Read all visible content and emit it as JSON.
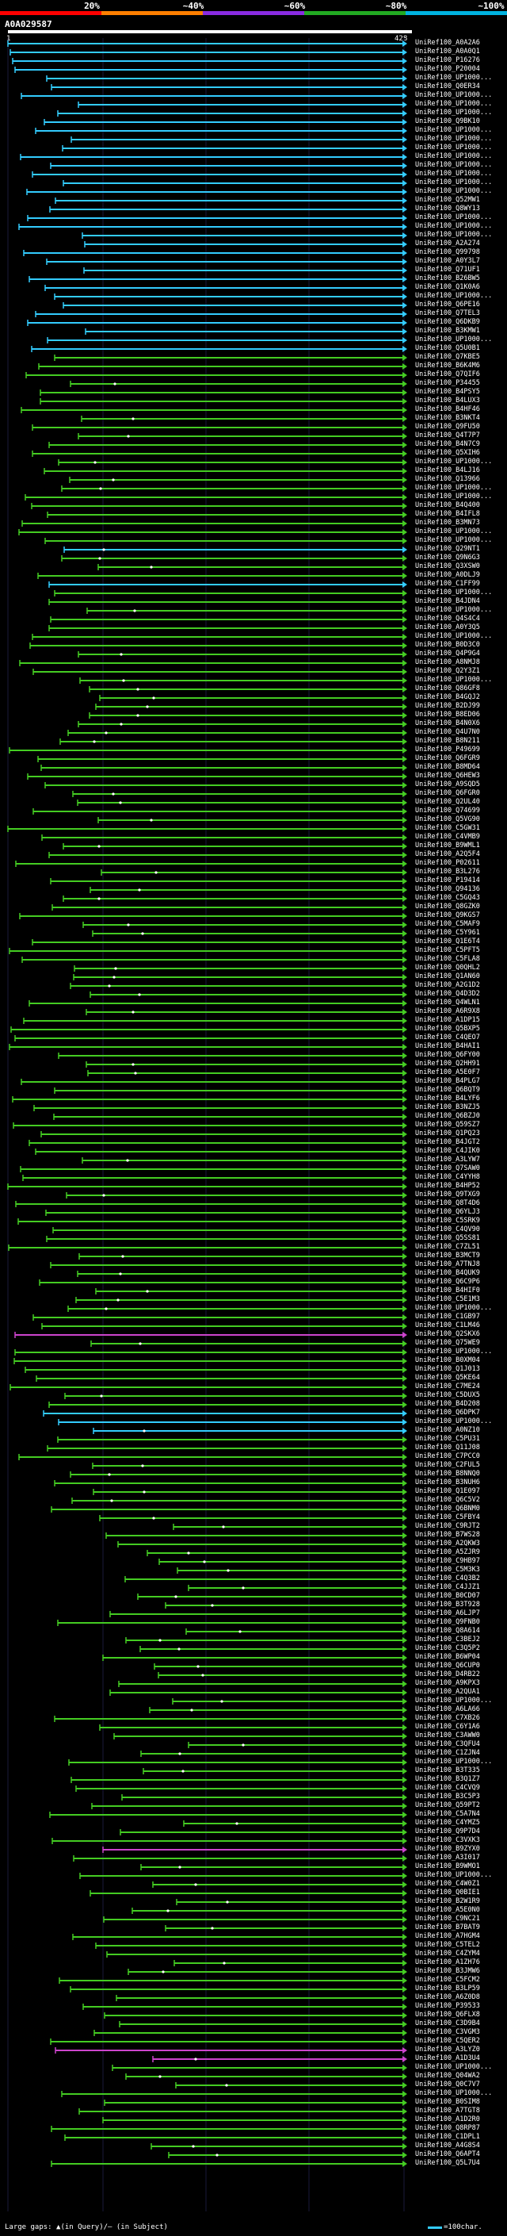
{
  "header": {
    "scale_ticks": [
      "20%",
      "~40%",
      "~60%",
      "~80%",
      "~100%"
    ],
    "colors": [
      "#ff0000",
      "#ff7f00",
      "#8a2be2",
      "#22aa22",
      "#00b3e0"
    ]
  },
  "query": {
    "id": "A0A029587",
    "start": "1",
    "end": "428"
  },
  "hit_colors": {
    "cyan": "#33ccff",
    "green": "#44cc22",
    "magenta": "#cc44cc"
  },
  "hits": [
    "UniRef100_A0A2A6",
    "UniRef100_A0A0Q1",
    "UniRef100_P16276",
    "UniRef100_P20004",
    "UniRef100_UP1000...",
    "UniRef100_Q0ER34",
    "UniRef100_UP1000...",
    "UniRef100_UP1000...",
    "UniRef100_UP1000...",
    "UniRef100_Q9BK10",
    "UniRef100_UP1000...",
    "UniRef100_UP1000...",
    "UniRef100_UP1000...",
    "UniRef100_UP1000...",
    "UniRef100_UP1000...",
    "UniRef100_UP1000...",
    "UniRef100_UP1000...",
    "UniRef100_UP1000...",
    "UniRef100_Q52MW1",
    "UniRef100_Q8WY13",
    "UniRef100_UP1000...",
    "UniRef100_UP1000...",
    "UniRef100_UP1000...",
    "UniRef100_A2A274",
    "UniRef100_Q99798",
    "UniRef100_A0Y3L7",
    "UniRef100_Q71UF1",
    "UniRef100_B26BW5",
    "UniRef100_Q1K0A6",
    "UniRef100_UP1000...",
    "UniRef100_Q6PE16",
    "UniRef100_Q7TEL3",
    "UniRef100_Q6DKB9",
    "UniRef100_B3KMW1",
    "UniRef100_UP1000...",
    "UniRef100_Q5U0B1",
    "UniRef100_Q7KBE5",
    "UniRef100_B6K4M6",
    "UniRef100_Q7QIF6",
    "UniRef100_P34455",
    "UniRef100_B4PSY5",
    "UniRef100_B4LUX3",
    "UniRef100_B4HF46",
    "UniRef100_B3NKT4",
    "UniRef100_Q9FU50",
    "UniRef100_Q4T7P7",
    "UniRef100_B4N7C9",
    "UniRef100_Q5XIH6",
    "UniRef100_UP1000...",
    "UniRef100_B4LJ16",
    "UniRef100_Q13966",
    "UniRef100_UP1000...",
    "UniRef100_UP1000...",
    "UniRef100_B4Q400",
    "UniRef100_B4IFL8",
    "UniRef100_B3MN73",
    "UniRef100_UP1000...",
    "UniRef100_UP1000...",
    "UniRef100_Q29NT1",
    "UniRef100_Q9N6G3",
    "UniRef100_Q3XSW0",
    "UniRef100_A0DLJ9",
    "UniRef100_C1FF99",
    "UniRef100_UP1000...",
    "UniRef100_B4JDN4",
    "UniRef100_UP1000...",
    "UniRef100_Q4S4C4",
    "UniRef100_A0Y3Q5",
    "UniRef100_UP1000...",
    "UniRef100_B0D3C0",
    "UniRef100_Q4P9G4",
    "UniRef100_A8NMJ8",
    "UniRef100_Q2Y3Z1",
    "UniRef100_UP1000...",
    "UniRef100_Q86GF8",
    "UniRef100_B4GQJ2",
    "UniRef100_B2DJ99",
    "UniRef100_B8ED06",
    "UniRef100_B4N0X6",
    "UniRef100_Q4U7N0",
    "UniRef100_B8N211",
    "UniRef100_P49699",
    "UniRef100_Q6FGR9",
    "UniRef100_B8MD64",
    "UniRef100_Q6HEW3",
    "UniRef100_A9SQD5",
    "UniRef100_Q6FGR0",
    "UniRef100_Q2UL40",
    "UniRef100_Q74699",
    "UniRef100_Q5VG90",
    "UniRef100_C5GW31",
    "UniRef100_C4VMB9",
    "UniRef100_B9WML1",
    "UniRef100_A2Q5F4",
    "UniRef100_P02611",
    "UniRef100_B3L276",
    "UniRef100_P19414",
    "UniRef100_Q94136",
    "UniRef100_C5GQ43",
    "UniRef100_Q8GZK0",
    "UniRef100_Q9KGS7",
    "UniRef100_C5MAF9",
    "UniRef100_C5Y961",
    "UniRef100_Q1E6T4",
    "UniRef100_C5PFT5",
    "UniRef100_C5FLA8",
    "UniRef100_Q0QHL2",
    "UniRef100_Q1AN60",
    "UniRef100_A2G1D2",
    "UniRef100_Q4D3D2",
    "UniRef100_Q4WLN1",
    "UniRef100_A6R9X8",
    "UniRef100_A1DP15",
    "UniRef100_Q5BXP5",
    "UniRef100_C4QEO7",
    "UniRef100_B4HAI1",
    "UniRef100_Q6FY00",
    "UniRef100_Q2HH91",
    "UniRef100_A5E0F7",
    "UniRef100_B4PLG7",
    "UniRef100_Q6BQT9",
    "UniRef100_B4LYF6",
    "UniRef100_B3NZJ5",
    "UniRef100_Q6BZJ0",
    "UniRef100_Q59SZ7",
    "UniRef100_Q1PQ23",
    "UniRef100_B4JGT2",
    "UniRef100_C4JIK0",
    "UniRef100_A3LYW7",
    "UniRef100_Q7SAW0",
    "UniRef100_C4YYH8",
    "UniRef100_B4HP52",
    "UniRef100_Q9TXG9",
    "UniRef100_Q8T4D6",
    "UniRef100_Q6YLJ3",
    "UniRef100_C5SRK9",
    "UniRef100_C4QV90",
    "UniRef100_Q5SS81",
    "UniRef100_C7ZL51",
    "UniRef100_B3MCT9",
    "UniRef100_A7TNJ8",
    "UniRef100_B4QUK9",
    "UniRef100_Q6C9P6",
    "UniRef100_B4HIF0",
    "UniRef100_C5E1M3",
    "UniRef100_UP1000...",
    "UniRef100_C1GB97",
    "UniRef100_C1LM46",
    "UniRef100_Q2SKX6",
    "UniRef100_Q75WE9",
    "UniRef100_UP1000...",
    "UniRef100_B0XM04",
    "UniRef100_Q1J013",
    "UniRef100_Q5KE64",
    "UniRef100_C7ME24",
    "UniRef100_C5DUX5",
    "UniRef100_B4D208",
    "UniRef100_Q6DPK7",
    "UniRef100_UP1000...",
    "UniRef100_A0NZ10",
    "UniRef100_C5PU31",
    "UniRef100_Q11J08",
    "UniRef100_C7PCC0",
    "UniRef100_C2FUL5",
    "UniRef100_B8NNQ0",
    "UniRef100_B3NUH6",
    "UniRef100_Q1E097",
    "UniRef100_Q6C5V2",
    "UniRef100_Q6BNM0",
    "UniRef100_C5FBY4",
    "UniRef100_C9RJT2",
    "UniRef100_B7WS28",
    "UniRef100_A2QKW3",
    "UniRef100_A5ZJR9",
    "UniRef100_C9HB97",
    "UniRef100_C5M3K3",
    "UniRef100_C4Q3B2",
    "UniRef100_C4JJZ1",
    "UniRef100_B0CD07",
    "UniRef100_B3T928",
    "UniRef100_A6LJP7",
    "UniRef100_Q9FNB0",
    "UniRef100_Q8A614",
    "UniRef100_C3BEJ2",
    "UniRef100_C3Q5P2",
    "UniRef100_B6WP04",
    "UniRef100_Q6CUP0",
    "UniRef100_D4RB22",
    "UniRef100_A9KPX3",
    "UniRef100_A2QUA1",
    "UniRef100_UP1000...",
    "UniRef100_A6LA66",
    "UniRef100_C7XB26",
    "UniRef100_C6Y1A6",
    "UniRef100_C3AWW0",
    "UniRef100_C3QFU4",
    "UniRef100_C1ZJN4",
    "UniRef100_UP1000...",
    "UniRef100_B3T335",
    "UniRef100_B3Q1Z7",
    "UniRef100_C4CVQ9",
    "UniRef100_B3C5P3",
    "UniRef100_Q59PT2",
    "UniRef100_C5A7N4",
    "UniRef100_C4YMZ5",
    "UniRef100_Q9P7D4",
    "UniRef100_C3VXK3",
    "UniRef100_B9ZYX0",
    "UniRef100_A3I017",
    "UniRef100_B9WMO1",
    "UniRef100_UP1000...",
    "UniRef100_C4W0Z1",
    "UniRef100_Q0BIE1",
    "UniRef100_B2W1R9",
    "UniRef100_A5E0N0",
    "UniRef100_C9NC21",
    "UniRef100_B7BAT9",
    "UniRef100_A7HGM4",
    "UniRef100_C5TEL2",
    "UniRef100_C4ZYM4",
    "UniRef100_A1ZH76",
    "UniRef100_B3JMW6",
    "UniRef100_C5FCM2",
    "UniRef100_B3LP59",
    "UniRef100_A6Z0D8",
    "UniRef100_P39533",
    "UniRef100_Q6FLX8",
    "UniRef100_C3D9B4",
    "UniRef100_C3VGM3",
    "UniRef100_C5QER2",
    "UniRef100_A3LYZ0",
    "UniRef100_A1D3U4",
    "UniRef100_UP1000...",
    "UniRef100_Q04WA2",
    "UniRef100_Q0C7V7",
    "UniRef100_UP1000...",
    "UniRef100_B0SIM8",
    "UniRef100_A7TGT8",
    "UniRef100_A1D2R0",
    "UniRef100_Q8RP87",
    "UniRef100_C1DPL1",
    "UniRef100_A4G8S4",
    "UniRef100_Q6APT4",
    "UniRef100_Q5L7U4"
  ],
  "footer": {
    "gaps_label": "Large gaps: ▲(in Query)/— (in Subject)",
    "scale_label": "=100char."
  }
}
